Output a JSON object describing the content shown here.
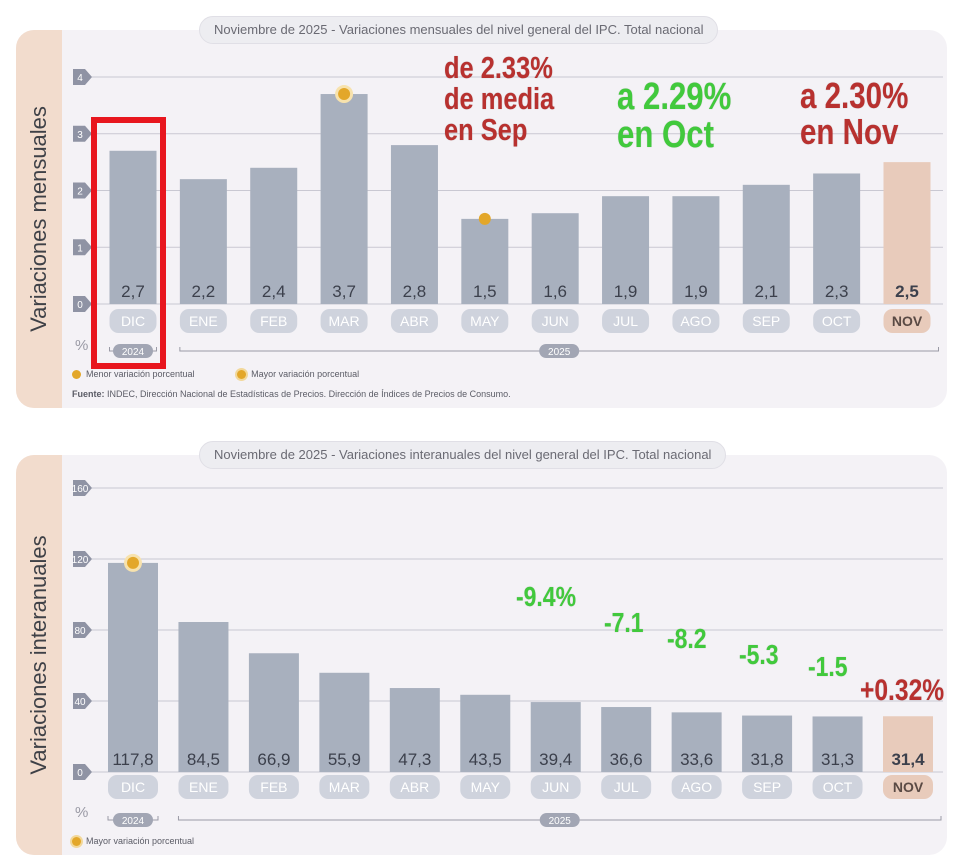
{
  "monthly": {
    "title_prefix": "Noviembre de 2025",
    "title_rest": " - Variaciones mensuales del nivel general del IPC. Total nacional",
    "side_label": "Variaciones mensuales",
    "unit": "%",
    "legend": [
      {
        "label": "Menor variación porcentual",
        "icon": "dot-icon",
        "color": "#e3a72a"
      },
      {
        "label": "Mayor variación porcentual",
        "icon": "ring-dot-icon",
        "color": "#e3a72a"
      }
    ],
    "source_label": "Fuente:",
    "source_text": " INDEC, Dirección Nacional de Estadísticas de Precios. Dirección de Índices de Precios de Consumo.",
    "annotations": [
      {
        "text": "de 2.33%\nde media\nen Sep",
        "color": "#b8312f"
      },
      {
        "text": "a 2.29%\nen Oct",
        "color": "#41c93c"
      },
      {
        "text": "a 2.30%\nen Nov",
        "color": "#b8312f"
      }
    ]
  },
  "interannual": {
    "title_prefix": "Noviembre de 2025",
    "title_rest": " - Variaciones interanuales del nivel general del IPC. Total nacional",
    "side_label": "Variaciones interanuales",
    "unit": "%",
    "legend": [
      {
        "label": "Mayor variación porcentual",
        "icon": "ring-dot-icon",
        "color": "#e3a72a"
      }
    ],
    "annotations": [
      {
        "text": "-9.4%",
        "color": "#41c93c"
      },
      {
        "text": "-7.1",
        "color": "#41c93c"
      },
      {
        "text": "-8.2",
        "color": "#41c93c"
      },
      {
        "text": "-5.3",
        "color": "#41c93c"
      },
      {
        "text": "-1.5",
        "color": "#41c93c"
      },
      {
        "text": "+0.32%",
        "color": "#b8312f"
      }
    ]
  },
  "chart_data": [
    {
      "type": "bar",
      "title": "Noviembre de 2025 - Variaciones mensuales del nivel general del IPC. Total nacional",
      "ylabel": "Variaciones mensuales",
      "unit": "%",
      "categories": [
        "DIC",
        "ENE",
        "FEB",
        "MAR",
        "ABR",
        "MAY",
        "JUN",
        "JUL",
        "AGO",
        "SEP",
        "OCT",
        "NOV"
      ],
      "values": [
        2.7,
        2.2,
        2.4,
        3.7,
        2.8,
        1.5,
        1.6,
        1.9,
        1.9,
        2.1,
        2.3,
        2.5
      ],
      "value_labels": [
        "2,7",
        "2,2",
        "2,4",
        "3,7",
        "2,8",
        "1,5",
        "1,6",
        "1,9",
        "1,9",
        "2,1",
        "2,3",
        "2,5"
      ],
      "yticks": [
        "0",
        "1",
        "2",
        "3",
        "4"
      ],
      "ylim": [
        0,
        4
      ],
      "year_groups": [
        {
          "label": "2024",
          "months": [
            "DIC"
          ]
        },
        {
          "label": "2025",
          "months": [
            "ENE",
            "FEB",
            "MAR",
            "ABR",
            "MAY",
            "JUN",
            "JUL",
            "AGO",
            "SEP",
            "OCT",
            "NOV"
          ]
        }
      ],
      "markers": [
        {
          "category": "MAR",
          "kind": "Mayor variación porcentual"
        },
        {
          "category": "MAY",
          "kind": "Menor variación porcentual"
        }
      ],
      "highlight_category": "NOV",
      "bar_color": "#a8b0be",
      "highlight_color": "#e8cbbb",
      "grid": true
    },
    {
      "type": "bar",
      "title": "Noviembre de 2025 - Variaciones interanuales del nivel general del IPC. Total nacional",
      "ylabel": "Variaciones interanuales",
      "unit": "%",
      "categories": [
        "DIC",
        "ENE",
        "FEB",
        "MAR",
        "ABR",
        "MAY",
        "JUN",
        "JUL",
        "AGO",
        "SEP",
        "OCT",
        "NOV"
      ],
      "values": [
        117.8,
        84.5,
        66.9,
        55.9,
        47.3,
        43.5,
        39.4,
        36.6,
        33.6,
        31.8,
        31.3,
        31.4
      ],
      "value_labels": [
        "117,8",
        "84,5",
        "66,9",
        "55,9",
        "47,3",
        "43,5",
        "39,4",
        "36,6",
        "33,6",
        "31,8",
        "31,3",
        "31,4"
      ],
      "yticks": [
        "0",
        "40",
        "80",
        "120",
        "160"
      ],
      "ylim": [
        0,
        160
      ],
      "year_groups": [
        {
          "label": "2024",
          "months": [
            "DIC"
          ]
        },
        {
          "label": "2025",
          "months": [
            "ENE",
            "FEB",
            "MAR",
            "ABR",
            "MAY",
            "JUN",
            "JUL",
            "AGO",
            "SEP",
            "OCT",
            "NOV"
          ]
        }
      ],
      "markers": [
        {
          "category": "DIC",
          "kind": "Mayor variación porcentual"
        }
      ],
      "highlight_category": "NOV",
      "bar_color": "#a8b0be",
      "highlight_color": "#e8cbbb",
      "grid": true
    }
  ]
}
